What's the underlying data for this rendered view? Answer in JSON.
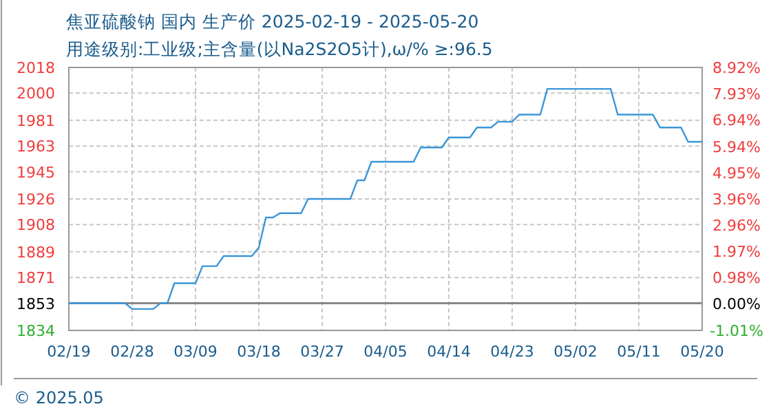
{
  "chart_data": {
    "type": "line",
    "title": "焦亚硫酸钠 国内 生产价 2025-02-19 - 2025-05-20",
    "subtitle": "用途级别:工业级;主含量(以Na2S2O5计),ω/%  ≥:96.5",
    "annotations": [
      "© 2025.05"
    ],
    "x": [
      "2025-02-19",
      "2025-02-27",
      "2025-02-28",
      "2025-03-03",
      "2025-03-04",
      "2025-03-05",
      "2025-03-06",
      "2025-03-09",
      "2025-03-10",
      "2025-03-12",
      "2025-03-13",
      "2025-03-17",
      "2025-03-18",
      "2025-03-19",
      "2025-03-20",
      "2025-03-21",
      "2025-03-24",
      "2025-03-25",
      "2025-03-31",
      "2025-04-01",
      "2025-04-02",
      "2025-04-03",
      "2025-04-09",
      "2025-04-10",
      "2025-04-13",
      "2025-04-14",
      "2025-04-17",
      "2025-04-18",
      "2025-04-20",
      "2025-04-21",
      "2025-04-23",
      "2025-04-24",
      "2025-04-27",
      "2025-04-28",
      "2025-05-07",
      "2025-05-08",
      "2025-05-13",
      "2025-05-14",
      "2025-05-17",
      "2025-05-18",
      "2025-05-20"
    ],
    "series": [
      {
        "color": "#3a96d8",
        "values": [
          1853,
          1853,
          1849,
          1849,
          1853,
          1853,
          1867,
          1867,
          1879,
          1879,
          1886,
          1886,
          1892,
          1913,
          1913,
          1916,
          1916,
          1926,
          1926,
          1939,
          1939,
          1952,
          1952,
          1962,
          1962,
          1969,
          1969,
          1976,
          1976,
          1980,
          1980,
          1985,
          1985,
          2003,
          2003,
          1985,
          1985,
          1976,
          1976,
          1966,
          1966
        ]
      }
    ],
    "xlim": [
      "2025-02-19",
      "2025-05-20"
    ],
    "xticks": [
      {
        "value": "2025-02-19",
        "label": "02/19"
      },
      {
        "value": "2025-02-28",
        "label": "02/28"
      },
      {
        "value": "2025-03-09",
        "label": "03/09"
      },
      {
        "value": "2025-03-18",
        "label": "03/18"
      },
      {
        "value": "2025-03-27",
        "label": "03/27"
      },
      {
        "value": "2025-04-05",
        "label": "04/05"
      },
      {
        "value": "2025-04-14",
        "label": "04/14"
      },
      {
        "value": "2025-04-23",
        "label": "04/23"
      },
      {
        "value": "2025-05-02",
        "label": "05/02"
      },
      {
        "value": "2025-05-11",
        "label": "05/11"
      },
      {
        "value": "2025-05-20",
        "label": "05/20"
      }
    ],
    "ylim": [
      1834,
      2018
    ],
    "yticks": [
      1834,
      1853,
      1871,
      1889,
      1908,
      1926,
      1945,
      1963,
      1981,
      2000,
      2018
    ],
    "y2lim": [
      -1.01,
      8.92
    ],
    "y2ticks": [
      {
        "value": -1.01,
        "label": "-1.01%"
      },
      {
        "value": 0,
        "label": "0.00%"
      },
      {
        "value": 0.98,
        "label": "0.98%"
      },
      {
        "value": 1.97,
        "label": "1.97%"
      },
      {
        "value": 2.96,
        "label": "2.96%"
      },
      {
        "value": 3.96,
        "label": "3.96%"
      },
      {
        "value": 4.95,
        "label": "4.95%"
      },
      {
        "value": 5.94,
        "label": "5.94%"
      },
      {
        "value": 6.94,
        "label": "6.94%"
      },
      {
        "value": 7.93,
        "label": "7.93%"
      },
      {
        "value": 8.92,
        "label": "8.92%"
      }
    ],
    "ref_lines": [
      {
        "axis": "y",
        "value": 1853,
        "color": "#888888"
      }
    ],
    "grid": true,
    "marker": "none",
    "line_style": "solid"
  }
}
